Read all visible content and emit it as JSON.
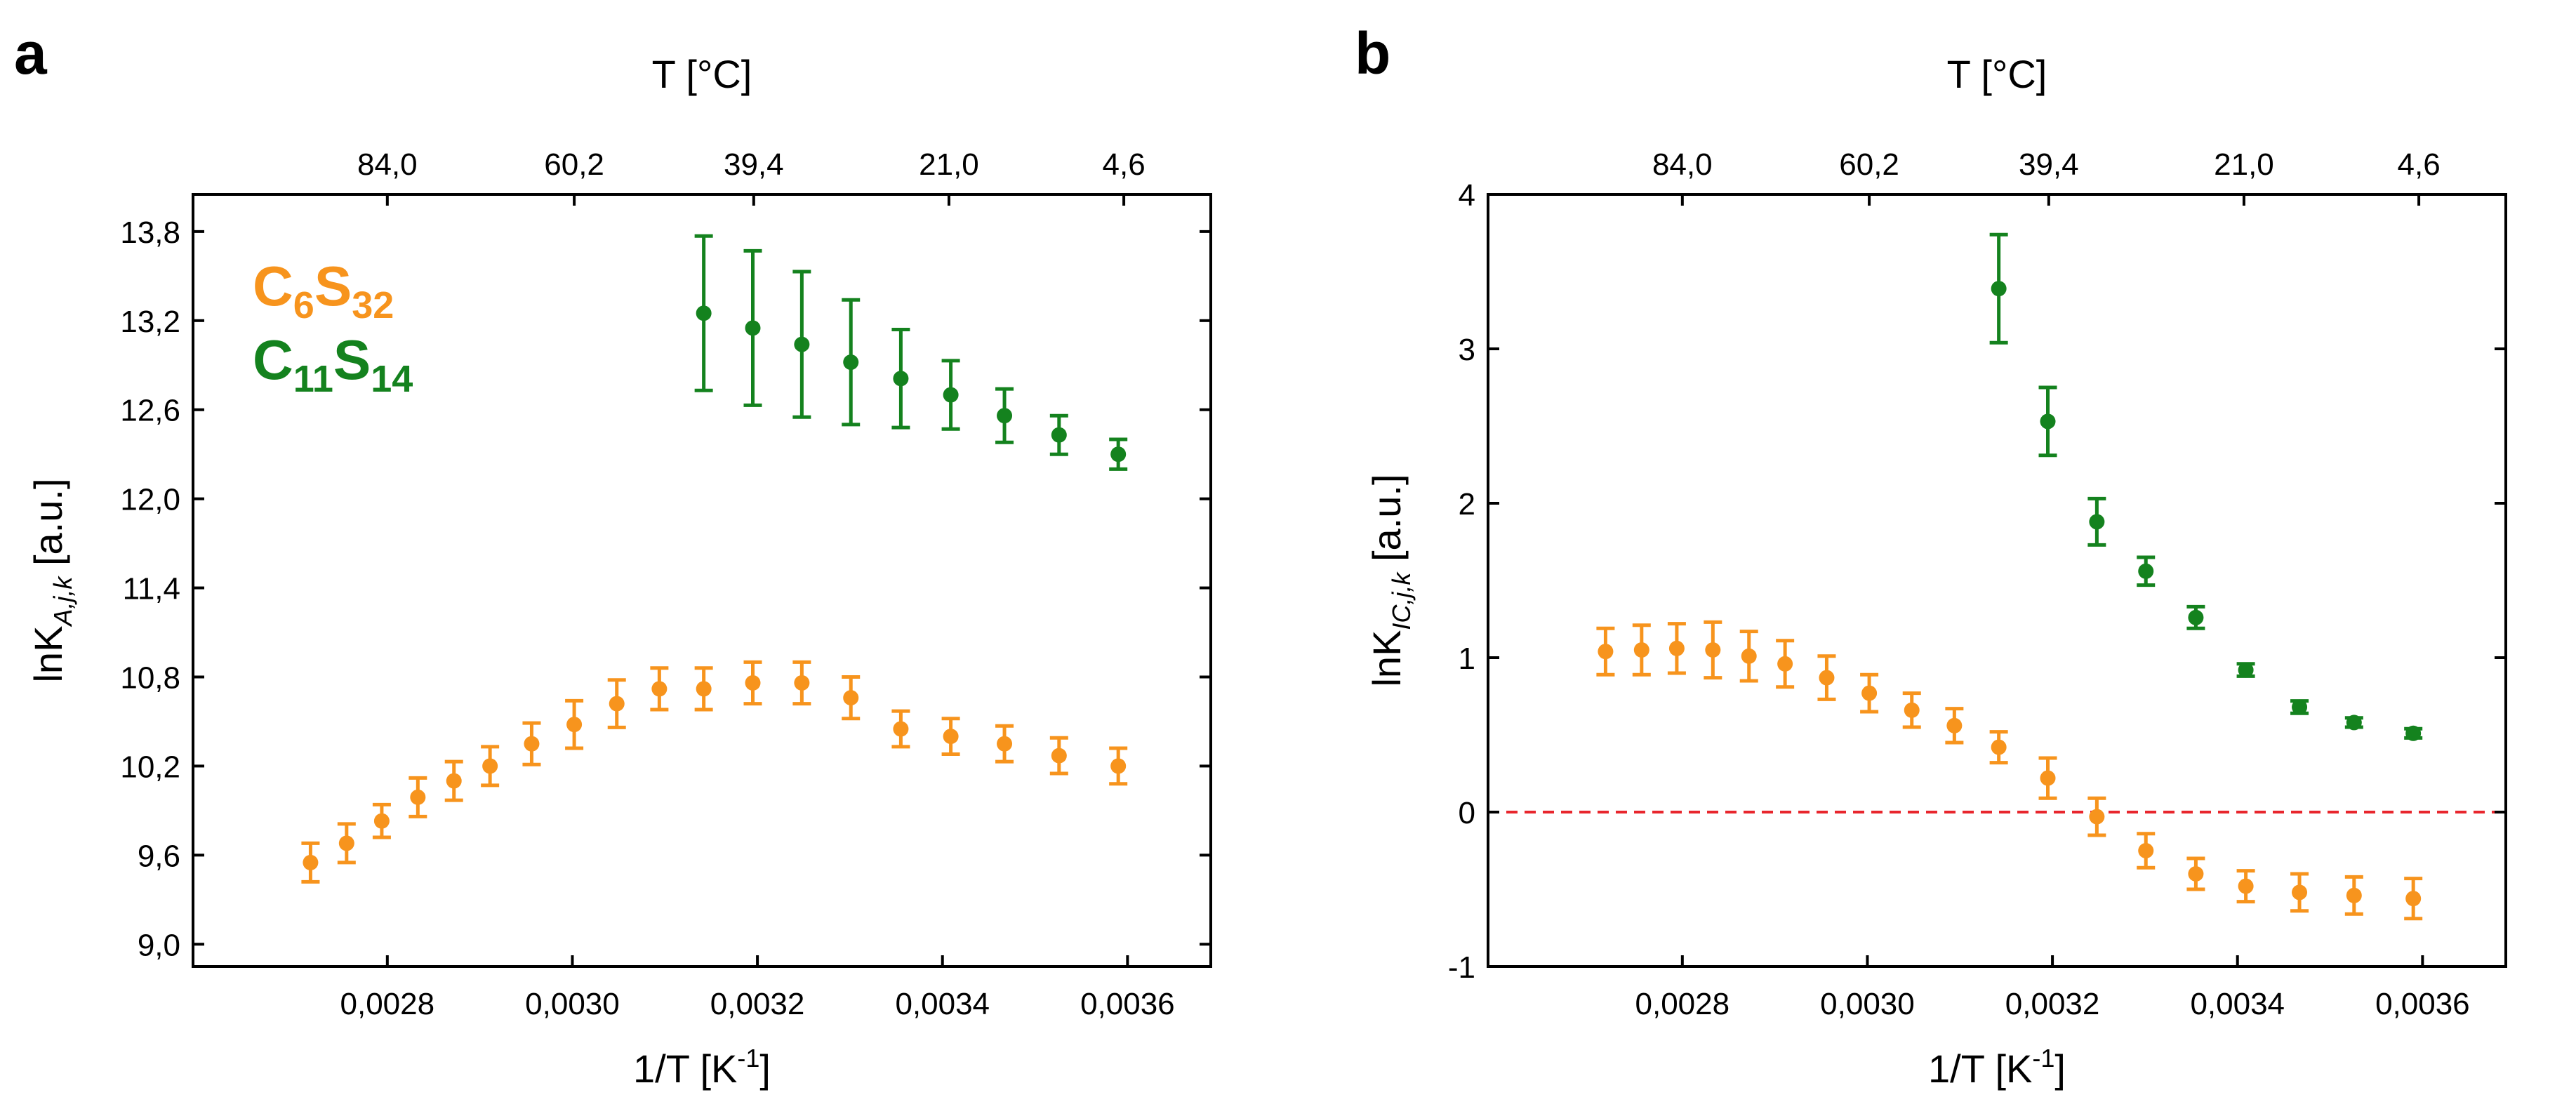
{
  "chart_data": [
    {
      "panel": "a",
      "type": "scatter",
      "xlabel": "1/T [K",
      "xlabel_sup": "-1",
      "xlabel_end": "]",
      "ylabel": "lnK",
      "ylabel_sub": "A,j,k",
      "ylabel_end": " [a.u.]",
      "top_xlabel": "T [°C]",
      "xlim": [
        0.00259,
        0.00369
      ],
      "ylim": [
        8.85,
        14.05
      ],
      "xticks": [
        {
          "v": 0.0028,
          "label": "0,0028"
        },
        {
          "v": 0.003,
          "label": "0,0030"
        },
        {
          "v": 0.0032,
          "label": "0,0032"
        },
        {
          "v": 0.0034,
          "label": "0,0034"
        },
        {
          "v": 0.0036,
          "label": "0,0036"
        }
      ],
      "yticks": [
        {
          "v": 9.0,
          "label": "9,0"
        },
        {
          "v": 9.6,
          "label": "9,6"
        },
        {
          "v": 10.2,
          "label": "10,2"
        },
        {
          "v": 10.8,
          "label": "10,8"
        },
        {
          "v": 11.4,
          "label": "11,4"
        },
        {
          "v": 12.0,
          "label": "12,0"
        },
        {
          "v": 12.6,
          "label": "12,6"
        },
        {
          "v": 13.2,
          "label": "13,2"
        },
        {
          "v": 13.8,
          "label": "13,8"
        }
      ],
      "top_ticks": [
        {
          "v": 0.0028,
          "label": "84,0"
        },
        {
          "v": 0.003002,
          "label": "60,2"
        },
        {
          "v": 0.003196,
          "label": "39,4"
        },
        {
          "v": 0.003407,
          "label": "21,0"
        },
        {
          "v": 0.003596,
          "label": "4,6"
        }
      ],
      "legend": [
        {
          "name": "C",
          "sub1": "6",
          "mid": "S",
          "sub2": "32",
          "color": "#f7941d"
        },
        {
          "name": "C",
          "sub1": "11",
          "mid": "S",
          "sub2": "14",
          "color": "#14821e"
        }
      ],
      "series": [
        {
          "name": "C6S32",
          "color": "#f7941d",
          "x": [
            0.002717,
            0.002756,
            0.002794,
            0.002833,
            0.002872,
            0.002911,
            0.002956,
            0.003002,
            0.003048,
            0.003094,
            0.003142,
            0.003195,
            0.003248,
            0.003301,
            0.003355,
            0.003409,
            0.003467,
            0.003526,
            0.00359
          ],
          "y": [
            9.55,
            9.68,
            9.83,
            9.99,
            10.1,
            10.2,
            10.35,
            10.48,
            10.62,
            10.72,
            10.72,
            10.76,
            10.76,
            10.66,
            10.45,
            10.4,
            10.35,
            10.27,
            10.2
          ],
          "err": [
            0.13,
            0.13,
            0.11,
            0.13,
            0.13,
            0.13,
            0.14,
            0.16,
            0.16,
            0.14,
            0.14,
            0.14,
            0.14,
            0.14,
            0.12,
            0.12,
            0.12,
            0.12,
            0.12
          ]
        },
        {
          "name": "C11S14",
          "color": "#14821e",
          "x": [
            0.003142,
            0.003195,
            0.003248,
            0.003301,
            0.003355,
            0.003409,
            0.003467,
            0.003526,
            0.00359
          ],
          "y": [
            13.25,
            13.15,
            13.04,
            12.92,
            12.81,
            12.7,
            12.56,
            12.43,
            12.3
          ],
          "err": [
            0.52,
            0.52,
            0.49,
            0.42,
            0.33,
            0.23,
            0.18,
            0.13,
            0.1
          ]
        }
      ]
    },
    {
      "panel": "b",
      "type": "scatter",
      "xlabel": "1/T [K",
      "xlabel_sup": "-1",
      "xlabel_end": "]",
      "ylabel": "lnK",
      "ylabel_sub": "IC,j,k",
      "ylabel_end": " [a.u.]",
      "top_xlabel": "T [°C]",
      "xlim": [
        0.00259,
        0.00369
      ],
      "ylim": [
        -1.0,
        4.0
      ],
      "reference_line": {
        "y": 0,
        "color": "#e8262d",
        "style": "dashed"
      },
      "xticks": [
        {
          "v": 0.0028,
          "label": "0,0028"
        },
        {
          "v": 0.003,
          "label": "0,0030"
        },
        {
          "v": 0.0032,
          "label": "0,0032"
        },
        {
          "v": 0.0034,
          "label": "0,0034"
        },
        {
          "v": 0.0036,
          "label": "0,0036"
        }
      ],
      "yticks": [
        {
          "v": -1,
          "label": "-1"
        },
        {
          "v": 0,
          "label": "0"
        },
        {
          "v": 1,
          "label": "1"
        },
        {
          "v": 2,
          "label": "2"
        },
        {
          "v": 3,
          "label": "3"
        },
        {
          "v": 4,
          "label": "4"
        }
      ],
      "top_ticks": [
        {
          "v": 0.0028,
          "label": "84,0"
        },
        {
          "v": 0.003002,
          "label": "60,2"
        },
        {
          "v": 0.003196,
          "label": "39,4"
        },
        {
          "v": 0.003407,
          "label": "21,0"
        },
        {
          "v": 0.003596,
          "label": "4,6"
        }
      ],
      "series": [
        {
          "name": "C6S32",
          "color": "#f7941d",
          "x": [
            0.002717,
            0.002756,
            0.002794,
            0.002833,
            0.002872,
            0.002911,
            0.002956,
            0.003002,
            0.003048,
            0.003094,
            0.003142,
            0.003195,
            0.003248,
            0.003301,
            0.003355,
            0.003409,
            0.003467,
            0.003526,
            0.00359
          ],
          "y": [
            1.04,
            1.05,
            1.06,
            1.05,
            1.01,
            0.96,
            0.87,
            0.77,
            0.66,
            0.56,
            0.42,
            0.22,
            -0.03,
            -0.25,
            -0.4,
            -0.48,
            -0.52,
            -0.54,
            -0.56
          ],
          "err": [
            0.15,
            0.16,
            0.16,
            0.18,
            0.16,
            0.15,
            0.14,
            0.12,
            0.11,
            0.11,
            0.1,
            0.13,
            0.12,
            0.11,
            0.1,
            0.1,
            0.12,
            0.12,
            0.13
          ]
        },
        {
          "name": "C11S14",
          "color": "#14821e",
          "x": [
            0.003142,
            0.003195,
            0.003248,
            0.003301,
            0.003355,
            0.003409,
            0.003467,
            0.003526,
            0.00359
          ],
          "y": [
            3.39,
            2.53,
            1.88,
            1.56,
            1.26,
            0.92,
            0.68,
            0.58,
            0.51
          ],
          "err": [
            0.35,
            0.22,
            0.15,
            0.09,
            0.07,
            0.04,
            0.04,
            0.03,
            0.03
          ]
        }
      ]
    }
  ]
}
